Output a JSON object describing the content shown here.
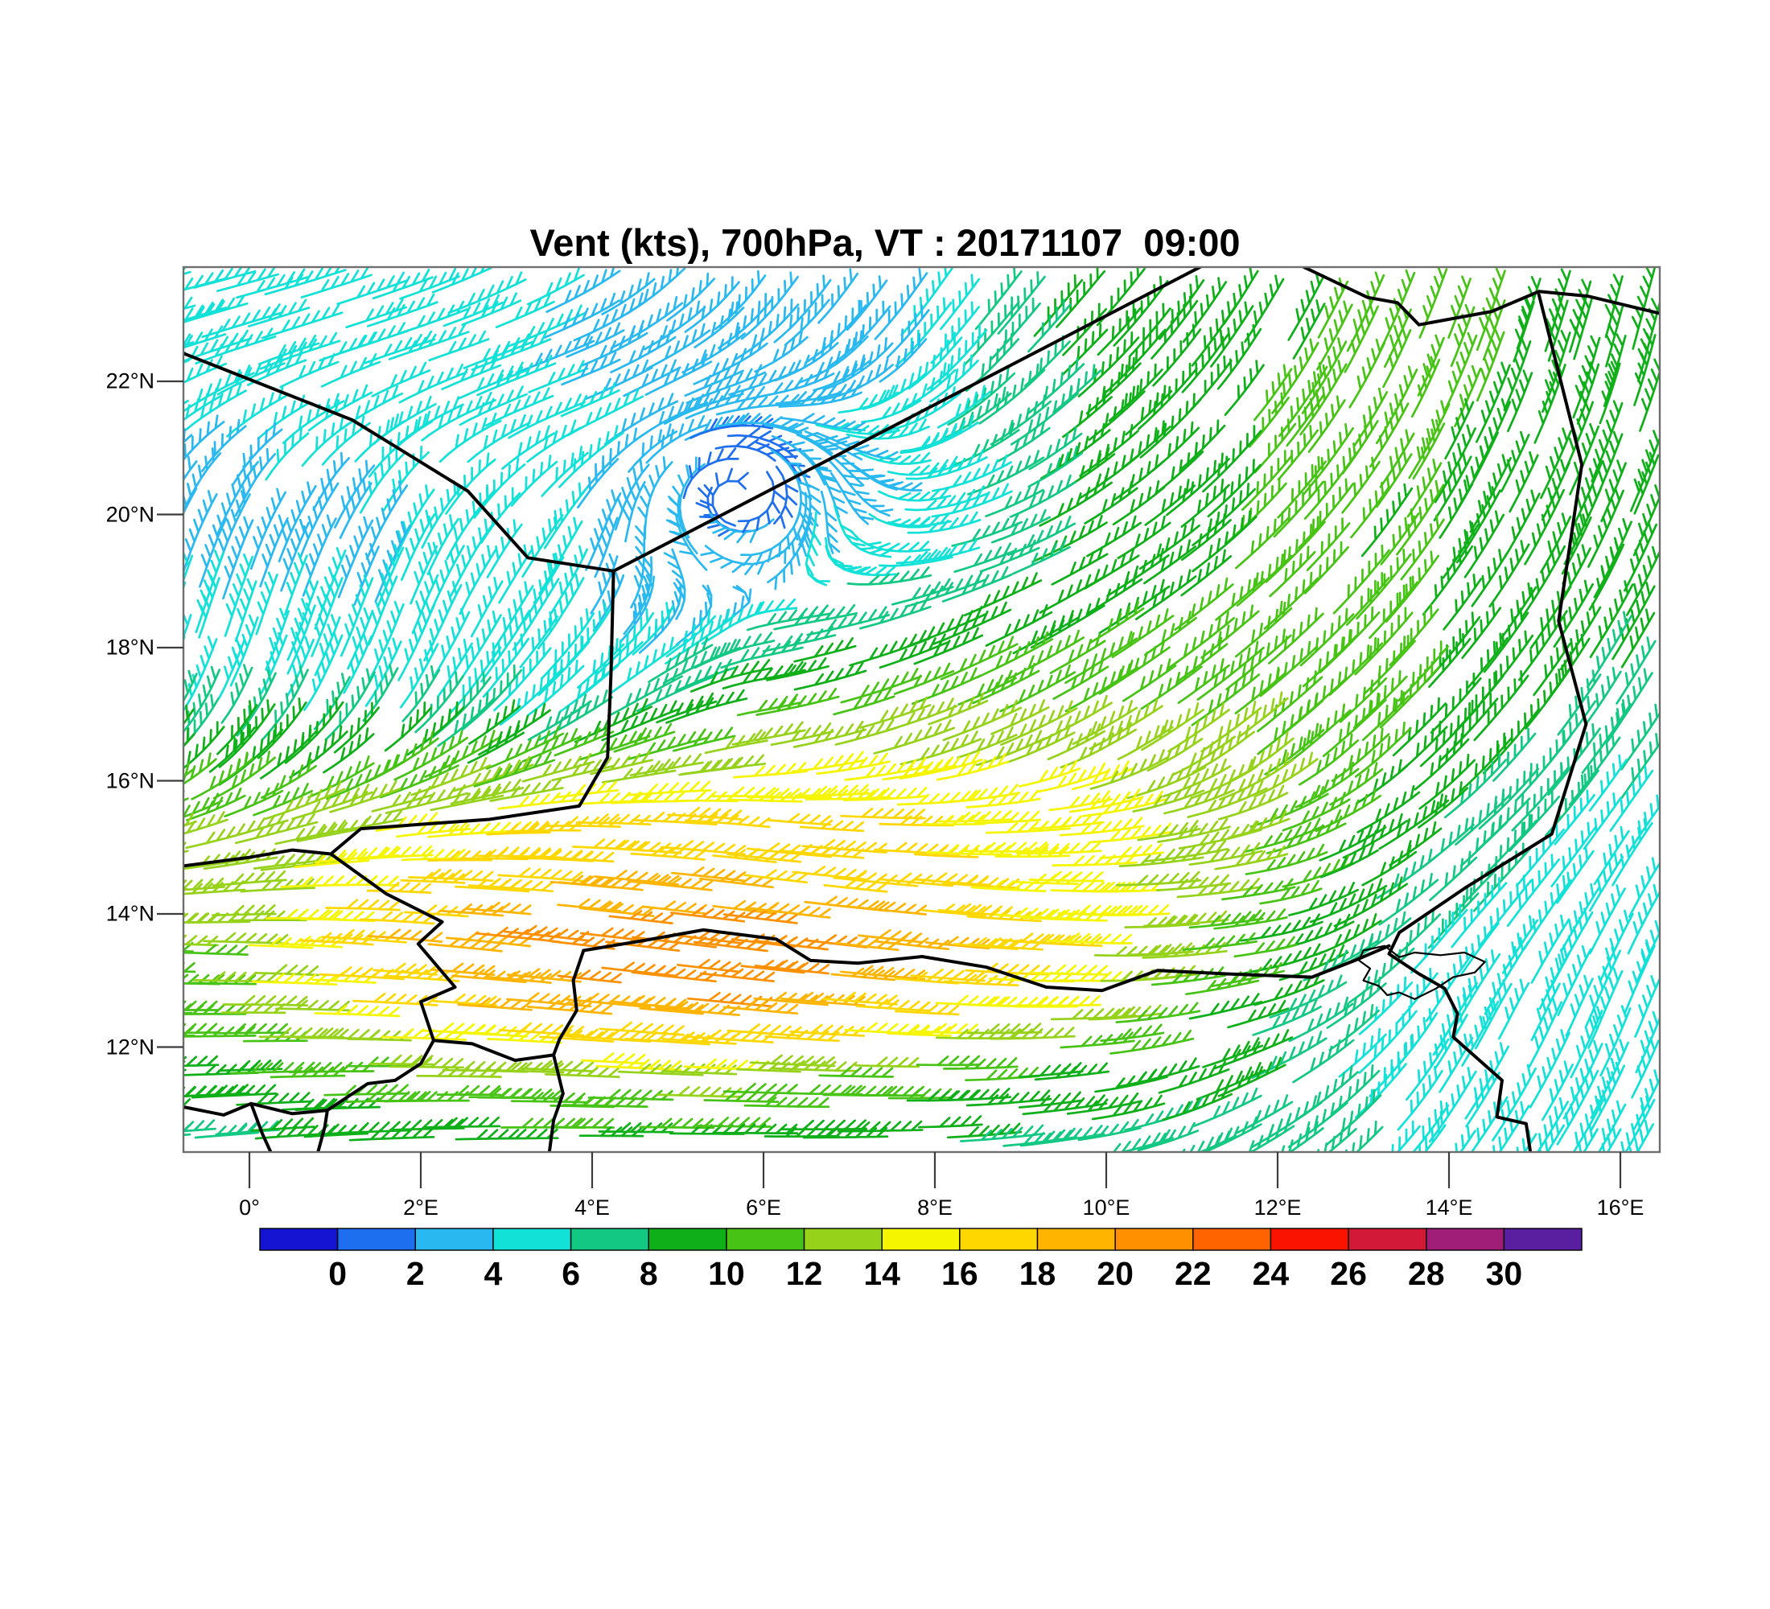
{
  "title": "Vent (kts), 700hPa, VT : 20171107  09:00",
  "chart_data": {
    "type": "wind_barbs",
    "title": "Vent (kts), 700hPa, VT : 20171107  09:00",
    "variable": "Vent",
    "units": "kts",
    "level": "700hPa",
    "valid_time": "20171107 09:00",
    "legend_position": "bottom",
    "grid": "off",
    "x_axis": {
      "tick_labels": [
        "0°",
        "2°E",
        "4°E",
        "6°E",
        "8°E",
        "10°E",
        "12°E",
        "14°E",
        "16°E"
      ],
      "tick_lons": [
        0,
        2,
        4,
        6,
        8,
        10,
        12,
        14,
        16
      ],
      "lon_range": [
        -0.77,
        16.46
      ]
    },
    "y_axis": {
      "tick_labels": [
        "22°N",
        "20°N",
        "18°N",
        "16°N",
        "14°N",
        "12°N"
      ],
      "tick_lats": [
        22,
        20,
        18,
        16,
        14,
        12
      ],
      "lat_range": [
        10.43,
        23.72
      ]
    },
    "colorbar": {
      "tick_labels": [
        "0",
        "2",
        "4",
        "6",
        "8",
        "10",
        "12",
        "14",
        "16",
        "18",
        "20",
        "22",
        "24",
        "26",
        "28",
        "30"
      ],
      "bin_edges": [
        0,
        2,
        4,
        6,
        8,
        10,
        12,
        14,
        16,
        18,
        20,
        22,
        24,
        26,
        28,
        30
      ],
      "colors": [
        "#1414D2",
        "#1E6EF0",
        "#29B9F0",
        "#12E1D7",
        "#12C882",
        "#0FAF19",
        "#46C314",
        "#96D219",
        "#F5F500",
        "#FFD700",
        "#FFB400",
        "#FF9100",
        "#FF6400",
        "#FA1400",
        "#D21937",
        "#A01E78",
        "#5A1EA0"
      ]
    },
    "wind_grid": {
      "lons": [
        0,
        2,
        4,
        6,
        8,
        10,
        12,
        14,
        16
      ],
      "lats": [
        23.5,
        22.5,
        21.5,
        20.5,
        19.5,
        18.5,
        17.5,
        16.5,
        15.5,
        14.5,
        13.5,
        12.5,
        11.5,
        10.5
      ],
      "speed_kts": [
        [
          5,
          4,
          4,
          3,
          4,
          9,
          9,
          12,
          8
        ],
        [
          5,
          6,
          4,
          3,
          4,
          8,
          10,
          11,
          8
        ],
        [
          4,
          5,
          5,
          2,
          5,
          8,
          10,
          10,
          8
        ],
        [
          3,
          4,
          4,
          1,
          4,
          8,
          10,
          10,
          8
        ],
        [
          4,
          4,
          4,
          2,
          5,
          8,
          10,
          10,
          8
        ],
        [
          5,
          5,
          4,
          5,
          8,
          10,
          11,
          10,
          8
        ],
        [
          7,
          7,
          6,
          9,
          11,
          12,
          12,
          10,
          7
        ],
        [
          10,
          11,
          11,
          13,
          14,
          14,
          13,
          9,
          6
        ],
        [
          12,
          14,
          16,
          16,
          16,
          15,
          13,
          8,
          5
        ],
        [
          12,
          16,
          18,
          18,
          17,
          15,
          12,
          7,
          4
        ],
        [
          12,
          18,
          21,
          22,
          19,
          16,
          11,
          5,
          4
        ],
        [
          11,
          16,
          19,
          20,
          17,
          14,
          9,
          4,
          5
        ],
        [
          9,
          11,
          13,
          13,
          11,
          9,
          8,
          5,
          5
        ],
        [
          7,
          8,
          9,
          9,
          8,
          7,
          7,
          6,
          5
        ]
      ],
      "wind_from_deg": [
        [
          75,
          70,
          60,
          35,
          35,
          40,
          30,
          20,
          15
        ],
        [
          72,
          72,
          68,
          45,
          40,
          45,
          32,
          22,
          15
        ],
        [
          55,
          60,
          75,
          60,
          55,
          50,
          38,
          26,
          20
        ],
        [
          30,
          35,
          60,
          110,
          70,
          55,
          42,
          30,
          22
        ],
        [
          20,
          25,
          45,
          85,
          75,
          60,
          46,
          34,
          25
        ],
        [
          18,
          22,
          40,
          78,
          68,
          58,
          48,
          38,
          30
        ],
        [
          25,
          30,
          50,
          80,
          68,
          58,
          50,
          42,
          32
        ],
        [
          45,
          55,
          70,
          80,
          72,
          62,
          52,
          45,
          35
        ],
        [
          70,
          80,
          90,
          95,
          90,
          82,
          70,
          52,
          35
        ],
        [
          85,
          92,
          95,
          97,
          95,
          90,
          80,
          48,
          30
        ],
        [
          92,
          95,
          97,
          97,
          96,
          92,
          80,
          38,
          25
        ],
        [
          90,
          93,
          95,
          95,
          93,
          88,
          72,
          30,
          22
        ],
        [
          88,
          90,
          92,
          92,
          90,
          82,
          62,
          32,
          26
        ],
        [
          85,
          88,
          90,
          90,
          88,
          80,
          58,
          36,
          30
        ]
      ]
    },
    "vortex": {
      "lon": 5.7,
      "lat": 20.3,
      "radius_deg": 1.6,
      "strength": 0.95
    },
    "borders": [
      [
        [
          -0.77,
          22.42
        ],
        [
          1.2,
          21.42
        ],
        [
          2.55,
          20.35
        ],
        [
          3.25,
          19.35
        ],
        [
          4.25,
          19.15
        ]
      ],
      [
        [
          4.25,
          19.15
        ],
        [
          4.22,
          17.6
        ],
        [
          4.18,
          16.35
        ],
        [
          3.85,
          15.62
        ],
        [
          2.8,
          15.42
        ],
        [
          1.3,
          15.28
        ],
        [
          0.95,
          14.9
        ]
      ],
      [
        [
          -0.77,
          14.72
        ],
        [
          0.0,
          14.85
        ],
        [
          0.5,
          14.96
        ],
        [
          0.95,
          14.9
        ]
      ],
      [
        [
          0.95,
          14.9
        ],
        [
          1.6,
          14.3
        ],
        [
          2.25,
          13.88
        ],
        [
          1.97,
          13.55
        ],
        [
          2.4,
          12.9
        ],
        [
          2.0,
          12.68
        ],
        [
          2.15,
          12.1
        ]
      ],
      [
        [
          2.15,
          12.1
        ],
        [
          2.6,
          12.05
        ],
        [
          3.1,
          11.8
        ],
        [
          3.55,
          11.88
        ]
      ],
      [
        [
          3.9,
          13.45
        ],
        [
          3.78,
          13.0
        ],
        [
          3.82,
          12.55
        ],
        [
          3.62,
          12.12
        ],
        [
          3.55,
          11.88
        ],
        [
          3.66,
          11.3
        ],
        [
          3.55,
          10.9
        ],
        [
          3.5,
          10.42
        ]
      ],
      [
        [
          3.9,
          13.45
        ],
        [
          4.6,
          13.6
        ],
        [
          5.3,
          13.76
        ],
        [
          6.15,
          13.62
        ],
        [
          6.55,
          13.3
        ],
        [
          7.1,
          13.26
        ],
        [
          7.85,
          13.36
        ],
        [
          8.6,
          13.2
        ],
        [
          9.3,
          12.9
        ],
        [
          9.95,
          12.85
        ],
        [
          10.6,
          13.15
        ],
        [
          11.4,
          13.1
        ],
        [
          12.4,
          13.05
        ],
        [
          12.9,
          13.3
        ],
        [
          13.3,
          13.52
        ]
      ],
      [
        [
          15.05,
          23.3
        ],
        [
          15.55,
          20.75
        ],
        [
          15.28,
          18.4
        ],
        [
          15.6,
          16.85
        ],
        [
          15.2,
          15.2
        ],
        [
          14.2,
          14.4
        ],
        [
          13.42,
          13.72
        ],
        [
          13.3,
          13.4
        ],
        [
          13.65,
          13.1
        ],
        [
          13.95,
          12.88
        ],
        [
          14.1,
          12.5
        ],
        [
          14.05,
          12.15
        ],
        [
          14.62,
          11.5
        ],
        [
          14.56,
          10.95
        ],
        [
          14.9,
          10.85
        ],
        [
          14.95,
          10.42
        ]
      ],
      [
        [
          12.3,
          23.72
        ],
        [
          13.05,
          23.26
        ],
        [
          13.4,
          23.18
        ],
        [
          13.65,
          22.85
        ],
        [
          14.5,
          23.05
        ],
        [
          15.05,
          23.35
        ],
        [
          15.62,
          23.28
        ],
        [
          16.46,
          23.02
        ]
      ],
      [
        [
          4.25,
          19.15
        ],
        [
          5.6,
          20.05
        ],
        [
          11.1,
          23.72
        ]
      ],
      [
        [
          -0.77,
          11.1
        ],
        [
          -0.3,
          10.98
        ],
        [
          0.02,
          11.15
        ],
        [
          0.5,
          11.0
        ],
        [
          0.91,
          11.05
        ],
        [
          1.38,
          11.45
        ],
        [
          1.7,
          11.5
        ],
        [
          2.0,
          11.75
        ],
        [
          2.15,
          12.1
        ]
      ],
      [
        [
          0.02,
          11.15
        ],
        [
          0.15,
          10.7
        ],
        [
          0.25,
          10.42
        ]
      ],
      [
        [
          0.91,
          11.05
        ],
        [
          0.88,
          10.8
        ],
        [
          0.8,
          10.42
        ]
      ]
    ],
    "lake_outline": [
      [
        13.0,
        13.45
      ],
      [
        13.25,
        13.52
      ],
      [
        13.42,
        13.35
      ],
      [
        13.6,
        13.42
      ],
      [
        13.9,
        13.38
      ],
      [
        14.18,
        13.42
      ],
      [
        14.42,
        13.28
      ],
      [
        14.3,
        13.12
      ],
      [
        14.05,
        13.05
      ],
      [
        13.85,
        12.88
      ],
      [
        13.6,
        12.72
      ],
      [
        13.42,
        12.82
      ],
      [
        13.28,
        12.78
      ],
      [
        13.18,
        12.92
      ],
      [
        13.0,
        13.0
      ],
      [
        13.08,
        13.18
      ],
      [
        12.95,
        13.3
      ],
      [
        13.0,
        13.45
      ]
    ]
  }
}
